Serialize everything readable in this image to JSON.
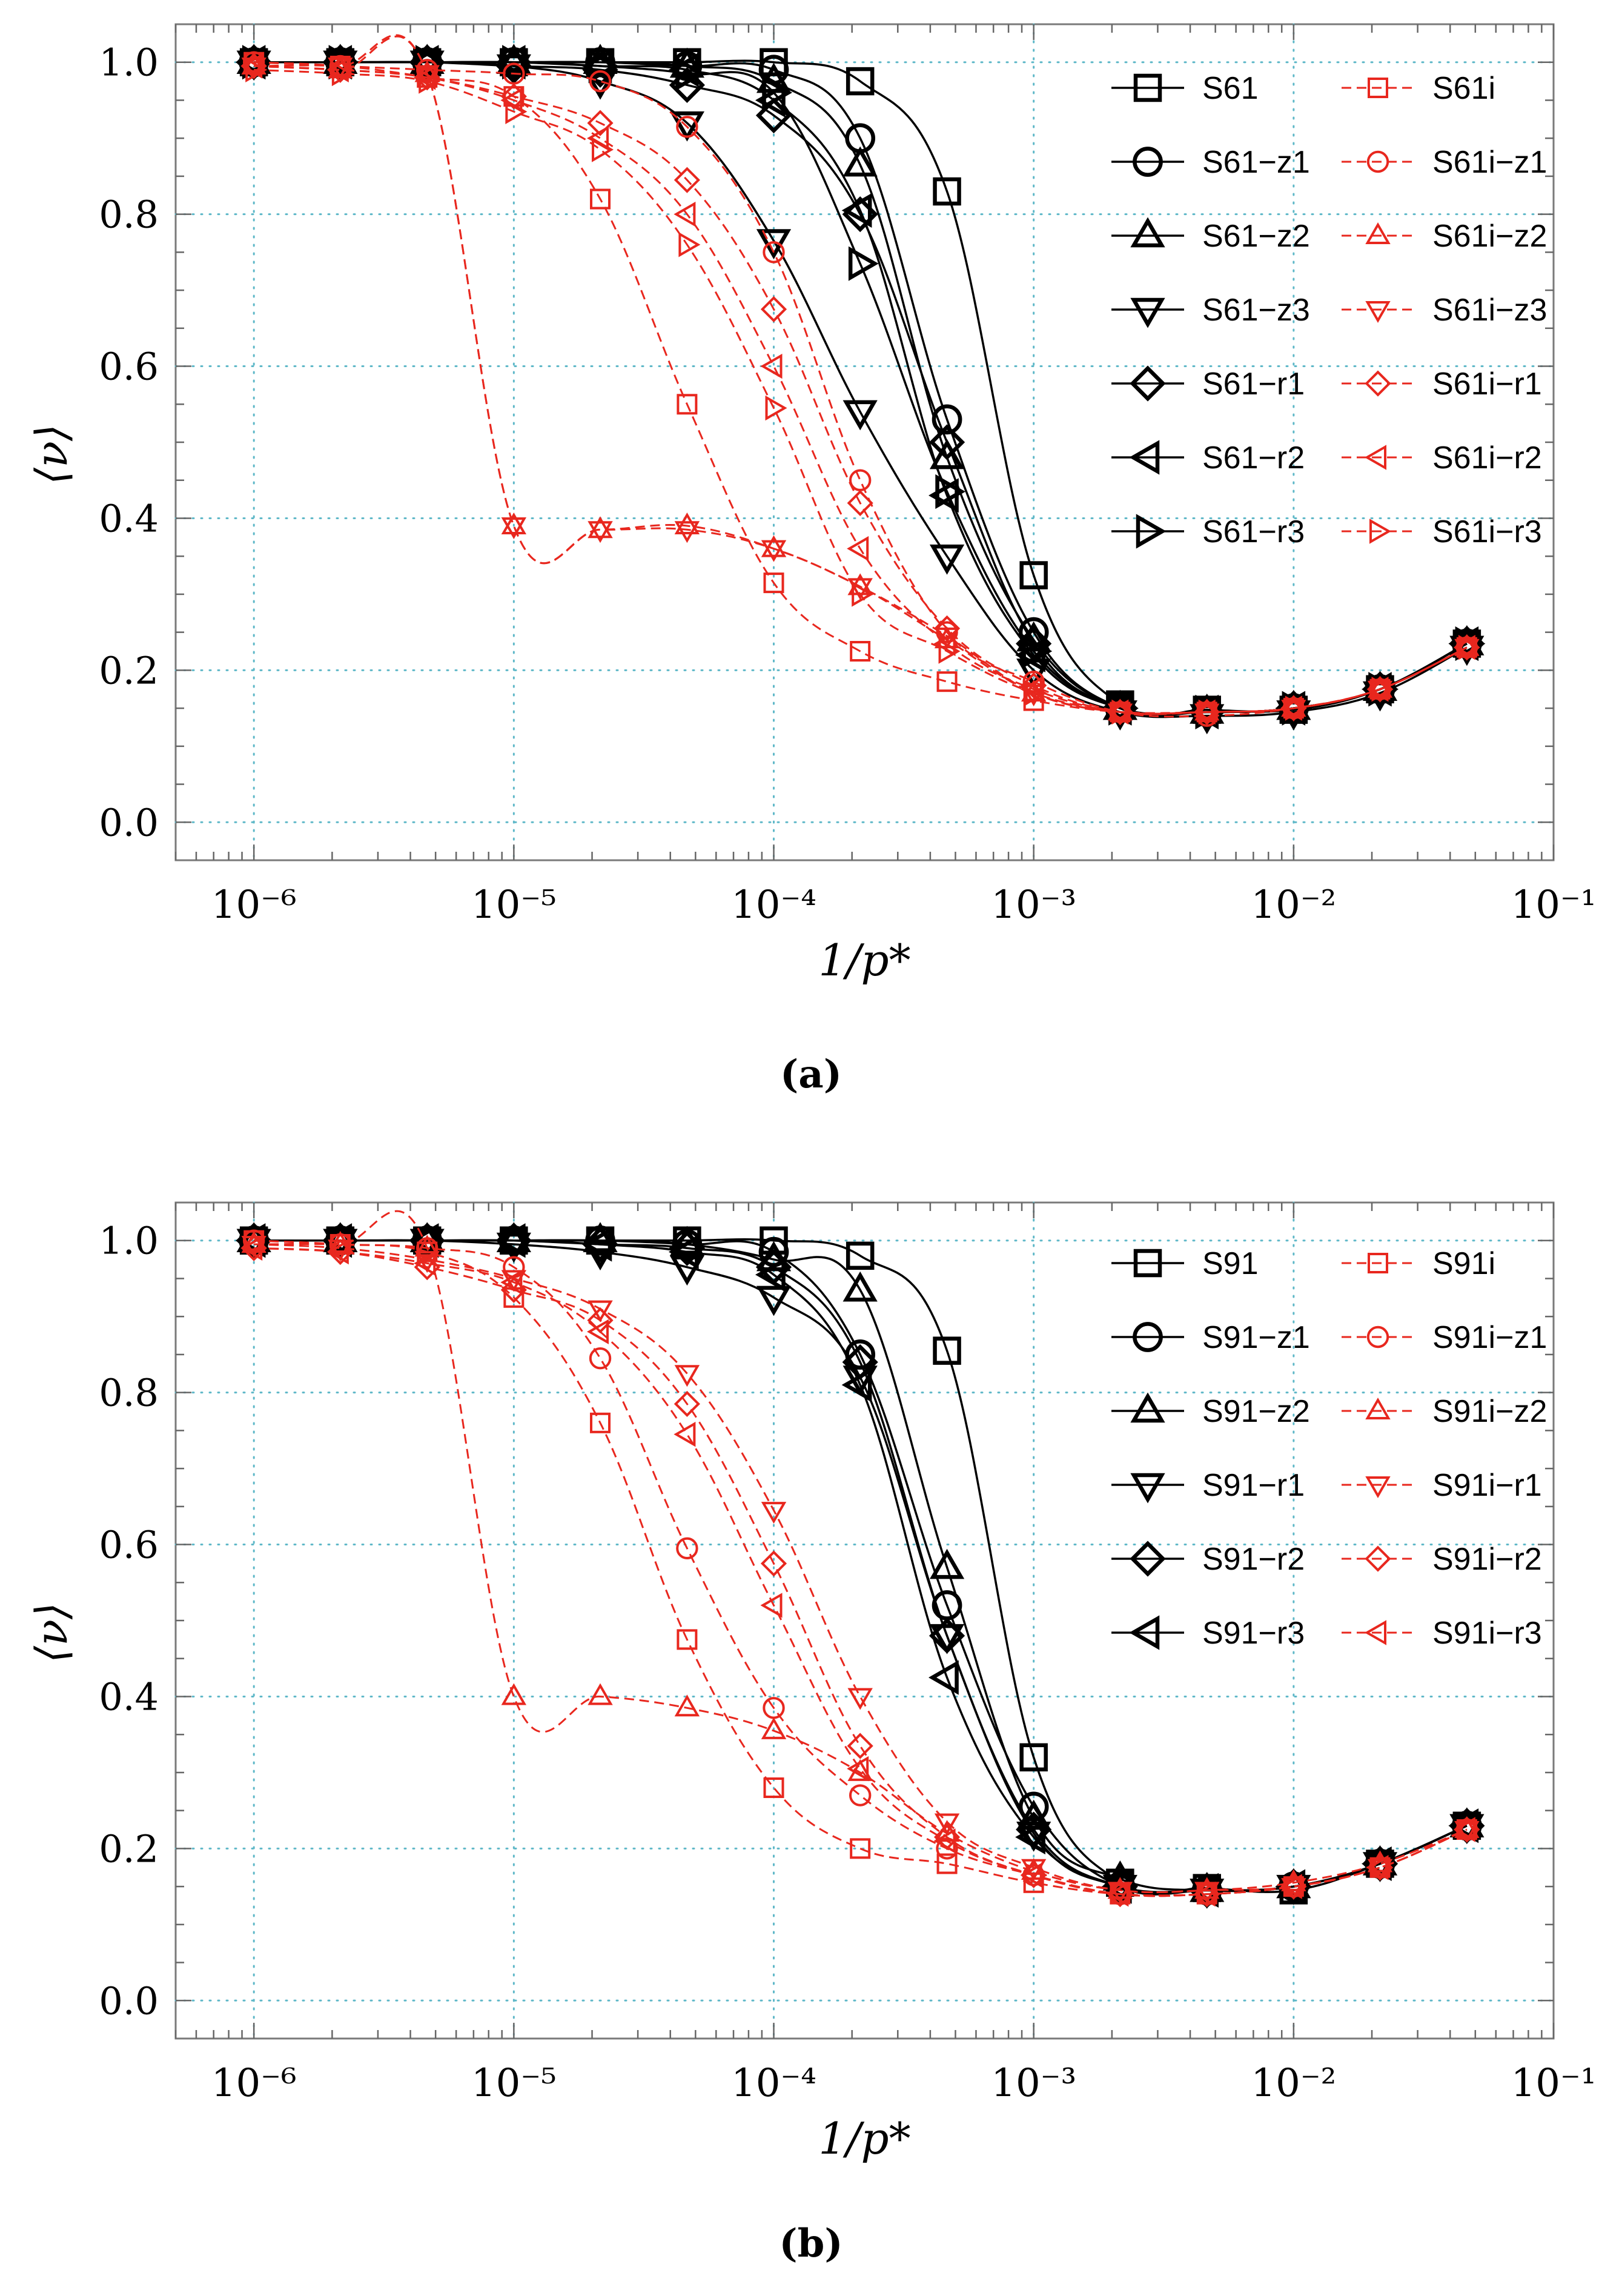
{
  "chart_data": [
    {
      "type": "line",
      "panel_label": "(a)",
      "xlabel": "1/p*",
      "ylabel": "⟨ν⟩",
      "xscale": "log",
      "xlim": [
        5e-07,
        0.1
      ],
      "ylim": [
        -0.05,
        1.05
      ],
      "x_tick_labels": [
        "10⁻⁶",
        "10⁻⁵",
        "10⁻⁴",
        "10⁻³",
        "10⁻²",
        "10⁻¹"
      ],
      "y_tick_labels": [
        "0.0",
        "0.2",
        "0.4",
        "0.6",
        "0.8",
        "1.0"
      ],
      "grid": true,
      "legend_position": "top-right",
      "x": [
        1e-06,
        2.15e-06,
        4.64e-06,
        1e-05,
        2.15e-05,
        4.64e-05,
        0.0001,
        0.000215,
        0.000464,
        0.001,
        0.00215,
        0.00464,
        0.01,
        0.0215,
        0.0464
      ],
      "series": [
        {
          "name": "S61",
          "color": "#000000",
          "marker": "square",
          "dash": false,
          "values": [
            1.0,
            1.0,
            1.0,
            1.0,
            1.0,
            1.0,
            1.0,
            0.975,
            0.83,
            0.325,
            0.155,
            0.148,
            0.148,
            0.175,
            0.235
          ]
        },
        {
          "name": "S61−z1",
          "color": "#000000",
          "marker": "circle",
          "dash": false,
          "values": [
            1.0,
            1.0,
            1.0,
            1.0,
            1.0,
            0.995,
            0.99,
            0.9,
            0.53,
            0.25,
            0.15,
            0.145,
            0.15,
            0.175,
            0.235
          ]
        },
        {
          "name": "S61−z2",
          "color": "#000000",
          "marker": "triangle-up",
          "dash": false,
          "values": [
            1.0,
            1.0,
            1.0,
            1.0,
            1.0,
            0.995,
            0.975,
            0.865,
            0.48,
            0.24,
            0.15,
            0.145,
            0.15,
            0.175,
            0.235
          ]
        },
        {
          "name": "S61−z3",
          "color": "#000000",
          "marker": "triangle-down",
          "dash": false,
          "values": [
            1.0,
            1.0,
            1.0,
            0.995,
            0.975,
            0.92,
            0.765,
            0.54,
            0.35,
            0.2,
            0.145,
            0.14,
            0.145,
            0.17,
            0.23
          ]
        },
        {
          "name": "S61−r1",
          "color": "#000000",
          "marker": "diamond",
          "dash": false,
          "values": [
            1.0,
            1.0,
            1.0,
            0.995,
            0.99,
            0.97,
            0.93,
            0.8,
            0.5,
            0.235,
            0.15,
            0.145,
            0.15,
            0.175,
            0.235
          ]
        },
        {
          "name": "S61−r2",
          "color": "#000000",
          "marker": "triangle-left",
          "dash": false,
          "values": [
            1.0,
            1.0,
            1.0,
            1.0,
            0.995,
            0.99,
            0.95,
            0.805,
            0.43,
            0.22,
            0.15,
            0.145,
            0.15,
            0.175,
            0.235
          ]
        },
        {
          "name": "S61−r3",
          "color": "#000000",
          "marker": "triangle-right",
          "dash": false,
          "values": [
            1.0,
            1.0,
            1.0,
            1.0,
            0.995,
            0.985,
            0.96,
            0.735,
            0.435,
            0.225,
            0.15,
            0.145,
            0.15,
            0.175,
            0.235
          ]
        },
        {
          "name": "S61i",
          "color": "#e8271e",
          "marker": "square",
          "dash": true,
          "values": [
            1.0,
            0.995,
            0.98,
            0.955,
            0.82,
            0.55,
            0.315,
            0.225,
            0.185,
            0.16,
            0.145,
            0.145,
            0.15,
            0.175,
            0.23
          ]
        },
        {
          "name": "S61i−z1",
          "color": "#e8271e",
          "marker": "circle",
          "dash": true,
          "values": [
            1.0,
            0.995,
            0.99,
            0.985,
            0.975,
            0.915,
            0.75,
            0.45,
            0.25,
            0.185,
            0.145,
            0.14,
            0.15,
            0.175,
            0.23
          ]
        },
        {
          "name": "S61i−z2",
          "color": "#e8271e",
          "marker": "triangle-up",
          "dash": true,
          "values": [
            0.995,
            0.99,
            0.985,
            0.39,
            0.385,
            0.39,
            0.36,
            0.31,
            0.24,
            0.17,
            0.145,
            0.145,
            0.15,
            0.175,
            0.23
          ]
        },
        {
          "name": "S61i−z3",
          "color": "#e8271e",
          "marker": "triangle-down",
          "dash": true,
          "values": [
            0.995,
            0.995,
            0.985,
            0.39,
            0.385,
            0.385,
            0.36,
            0.31,
            0.245,
            0.17,
            0.145,
            0.145,
            0.15,
            0.175,
            0.23
          ]
        },
        {
          "name": "S61i−r1",
          "color": "#e8271e",
          "marker": "diamond",
          "dash": true,
          "values": [
            0.995,
            0.99,
            0.98,
            0.955,
            0.92,
            0.845,
            0.675,
            0.42,
            0.255,
            0.18,
            0.145,
            0.145,
            0.15,
            0.175,
            0.23
          ]
        },
        {
          "name": "S61i−r2",
          "color": "#e8271e",
          "marker": "triangle-left",
          "dash": true,
          "values": [
            0.995,
            0.99,
            0.98,
            0.95,
            0.9,
            0.8,
            0.6,
            0.36,
            0.235,
            0.175,
            0.145,
            0.145,
            0.15,
            0.175,
            0.23
          ]
        },
        {
          "name": "S61i−r3",
          "color": "#e8271e",
          "marker": "triangle-right",
          "dash": true,
          "values": [
            0.99,
            0.985,
            0.975,
            0.935,
            0.885,
            0.76,
            0.545,
            0.3,
            0.225,
            0.17,
            0.145,
            0.145,
            0.15,
            0.175,
            0.23
          ]
        }
      ]
    },
    {
      "type": "line",
      "panel_label": "(b)",
      "xlabel": "1/p*",
      "ylabel": "⟨ν⟩",
      "xscale": "log",
      "xlim": [
        5e-07,
        0.1
      ],
      "ylim": [
        -0.05,
        1.05
      ],
      "x_tick_labels": [
        "10⁻⁶",
        "10⁻⁵",
        "10⁻⁴",
        "10⁻³",
        "10⁻²",
        "10⁻¹"
      ],
      "y_tick_labels": [
        "0.0",
        "0.2",
        "0.4",
        "0.6",
        "0.8",
        "1.0"
      ],
      "grid": true,
      "legend_position": "top-right",
      "x": [
        1e-06,
        2.15e-06,
        4.64e-06,
        1e-05,
        2.15e-05,
        4.64e-05,
        0.0001,
        0.000215,
        0.000464,
        0.001,
        0.00215,
        0.00464,
        0.01,
        0.0215,
        0.0464
      ],
      "series": [
        {
          "name": "S91",
          "color": "#000000",
          "marker": "square",
          "dash": false,
          "values": [
            1.0,
            1.0,
            1.0,
            1.0,
            1.0,
            1.0,
            1.0,
            0.98,
            0.855,
            0.32,
            0.155,
            0.148,
            0.145,
            0.18,
            0.23
          ]
        },
        {
          "name": "S91−z1",
          "color": "#000000",
          "marker": "circle",
          "dash": false,
          "values": [
            1.0,
            1.0,
            1.0,
            1.0,
            1.0,
            0.995,
            0.985,
            0.85,
            0.52,
            0.255,
            0.15,
            0.145,
            0.15,
            0.18,
            0.23
          ]
        },
        {
          "name": "S91−z2",
          "color": "#000000",
          "marker": "triangle-up",
          "dash": false,
          "values": [
            1.0,
            1.0,
            1.0,
            1.0,
            1.0,
            0.995,
            0.975,
            0.935,
            0.57,
            0.24,
            0.16,
            0.145,
            0.15,
            0.18,
            0.23
          ]
        },
        {
          "name": "S91−r1",
          "color": "#000000",
          "marker": "triangle-down",
          "dash": false,
          "values": [
            1.0,
            1.0,
            1.0,
            0.995,
            0.985,
            0.965,
            0.925,
            0.82,
            0.48,
            0.22,
            0.15,
            0.145,
            0.15,
            0.18,
            0.23
          ]
        },
        {
          "name": "S91−r2",
          "color": "#000000",
          "marker": "diamond",
          "dash": false,
          "values": [
            1.0,
            1.0,
            1.0,
            1.0,
            0.995,
            0.99,
            0.965,
            0.84,
            0.48,
            0.225,
            0.15,
            0.145,
            0.15,
            0.18,
            0.23
          ]
        },
        {
          "name": "S91−r3",
          "color": "#000000",
          "marker": "triangle-left",
          "dash": false,
          "values": [
            1.0,
            1.0,
            1.0,
            1.0,
            0.995,
            0.985,
            0.955,
            0.81,
            0.425,
            0.215,
            0.15,
            0.145,
            0.15,
            0.18,
            0.23
          ]
        },
        {
          "name": "S91i",
          "color": "#e8271e",
          "marker": "square",
          "dash": true,
          "values": [
            1.0,
            0.995,
            0.985,
            0.925,
            0.76,
            0.475,
            0.28,
            0.2,
            0.18,
            0.155,
            0.14,
            0.14,
            0.15,
            0.175,
            0.225
          ]
        },
        {
          "name": "S91i−z1",
          "color": "#e8271e",
          "marker": "circle",
          "dash": true,
          "values": [
            1.0,
            0.995,
            0.99,
            0.965,
            0.845,
            0.595,
            0.385,
            0.27,
            0.2,
            0.165,
            0.14,
            0.14,
            0.15,
            0.175,
            0.225
          ]
        },
        {
          "name": "S91i−z2",
          "color": "#e8271e",
          "marker": "triangle-up",
          "dash": true,
          "values": [
            0.995,
            0.995,
            0.99,
            0.4,
            0.4,
            0.385,
            0.355,
            0.3,
            0.22,
            0.17,
            0.145,
            0.145,
            0.155,
            0.18,
            0.225
          ]
        },
        {
          "name": "S91i−r1",
          "color": "#e8271e",
          "marker": "triangle-down",
          "dash": true,
          "values": [
            0.995,
            0.99,
            0.975,
            0.95,
            0.91,
            0.825,
            0.645,
            0.4,
            0.235,
            0.175,
            0.145,
            0.145,
            0.15,
            0.175,
            0.225
          ]
        },
        {
          "name": "S91i−r2",
          "color": "#e8271e",
          "marker": "diamond",
          "dash": true,
          "values": [
            0.99,
            0.985,
            0.965,
            0.935,
            0.895,
            0.785,
            0.575,
            0.335,
            0.215,
            0.165,
            0.14,
            0.14,
            0.15,
            0.175,
            0.225
          ]
        },
        {
          "name": "S91i−r3",
          "color": "#e8271e",
          "marker": "triangle-left",
          "dash": true,
          "values": [
            0.99,
            0.985,
            0.97,
            0.945,
            0.88,
            0.745,
            0.52,
            0.305,
            0.21,
            0.165,
            0.14,
            0.14,
            0.15,
            0.175,
            0.225
          ]
        }
      ]
    }
  ]
}
